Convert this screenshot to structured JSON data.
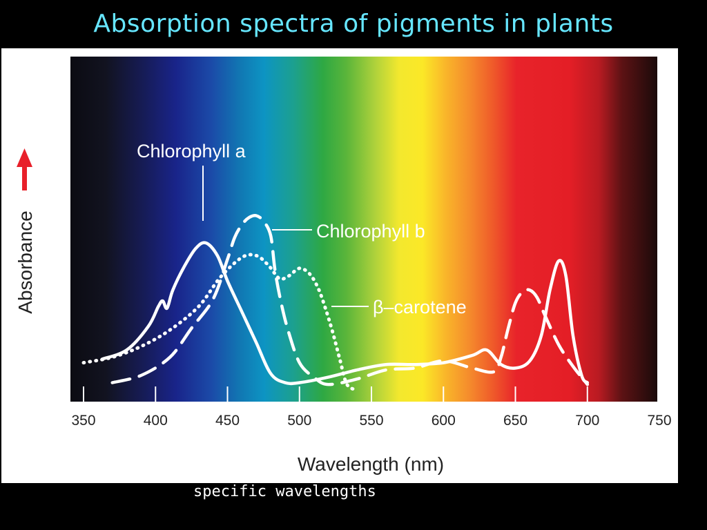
{
  "slide": {
    "title": "Absorption spectra of pigments in plants",
    "caption": "specific wavelengths"
  },
  "chart_data": {
    "type": "line",
    "title": "Absorption spectra of pigments in plants",
    "xlabel": "Wavelength (nm)",
    "ylabel": "Absorbance",
    "xlim": [
      350,
      750
    ],
    "ylim": [
      0,
      1
    ],
    "y_arrow_color": "#e8202a",
    "x_ticks": [
      350,
      400,
      450,
      500,
      550,
      600,
      650,
      700,
      750
    ],
    "background": "visible spectrum gradient (violet to red)",
    "grid": false,
    "series": [
      {
        "name": "Chlorophyll a",
        "style": "solid",
        "color": "#ffffff",
        "x": [
          363,
          380,
          395,
          402,
          405,
          408,
          412,
          420,
          428,
          435,
          443,
          450,
          460,
          470,
          480,
          490,
          500,
          520,
          540,
          560,
          580,
          600,
          620,
          630,
          640,
          650,
          660,
          668,
          674,
          680,
          685,
          690,
          696,
          700
        ],
        "y": [
          0.17,
          0.22,
          0.35,
          0.46,
          0.49,
          0.45,
          0.55,
          0.68,
          0.78,
          0.81,
          0.74,
          0.6,
          0.43,
          0.26,
          0.09,
          0.04,
          0.04,
          0.07,
          0.11,
          0.14,
          0.14,
          0.15,
          0.19,
          0.22,
          0.14,
          0.12,
          0.16,
          0.3,
          0.55,
          0.71,
          0.63,
          0.3,
          0.08,
          0.04
        ]
      },
      {
        "name": "Chlorophyll b",
        "style": "dashed",
        "color": "#ffffff",
        "x": [
          370,
          390,
          410,
          425,
          440,
          450,
          455,
          460,
          465,
          470,
          475,
          480,
          483,
          487,
          492,
          500,
          510,
          520,
          540,
          560,
          580,
          600,
          620,
          635,
          640,
          645,
          650,
          655,
          660,
          665,
          670,
          680,
          690,
          700
        ],
        "y": [
          0.04,
          0.08,
          0.18,
          0.34,
          0.5,
          0.72,
          0.84,
          0.91,
          0.95,
          0.96,
          0.93,
          0.85,
          0.66,
          0.49,
          0.33,
          0.15,
          0.07,
          0.03,
          0.06,
          0.11,
          0.12,
          0.16,
          0.12,
          0.1,
          0.18,
          0.34,
          0.48,
          0.54,
          0.55,
          0.51,
          0.42,
          0.25,
          0.13,
          0.03
        ]
      },
      {
        "name": "β–carotene",
        "style": "dotted",
        "color": "#ffffff",
        "x": [
          350,
          370,
          390,
          410,
          430,
          445,
          460,
          470,
          478,
          483,
          487,
          493,
          500,
          507,
          513,
          518,
          523,
          528,
          533,
          540
        ],
        "y": [
          0.15,
          0.18,
          0.24,
          0.33,
          0.46,
          0.62,
          0.73,
          0.74,
          0.69,
          0.64,
          0.61,
          0.63,
          0.67,
          0.64,
          0.56,
          0.45,
          0.32,
          0.17,
          0.03,
          0.0
        ]
      }
    ]
  }
}
